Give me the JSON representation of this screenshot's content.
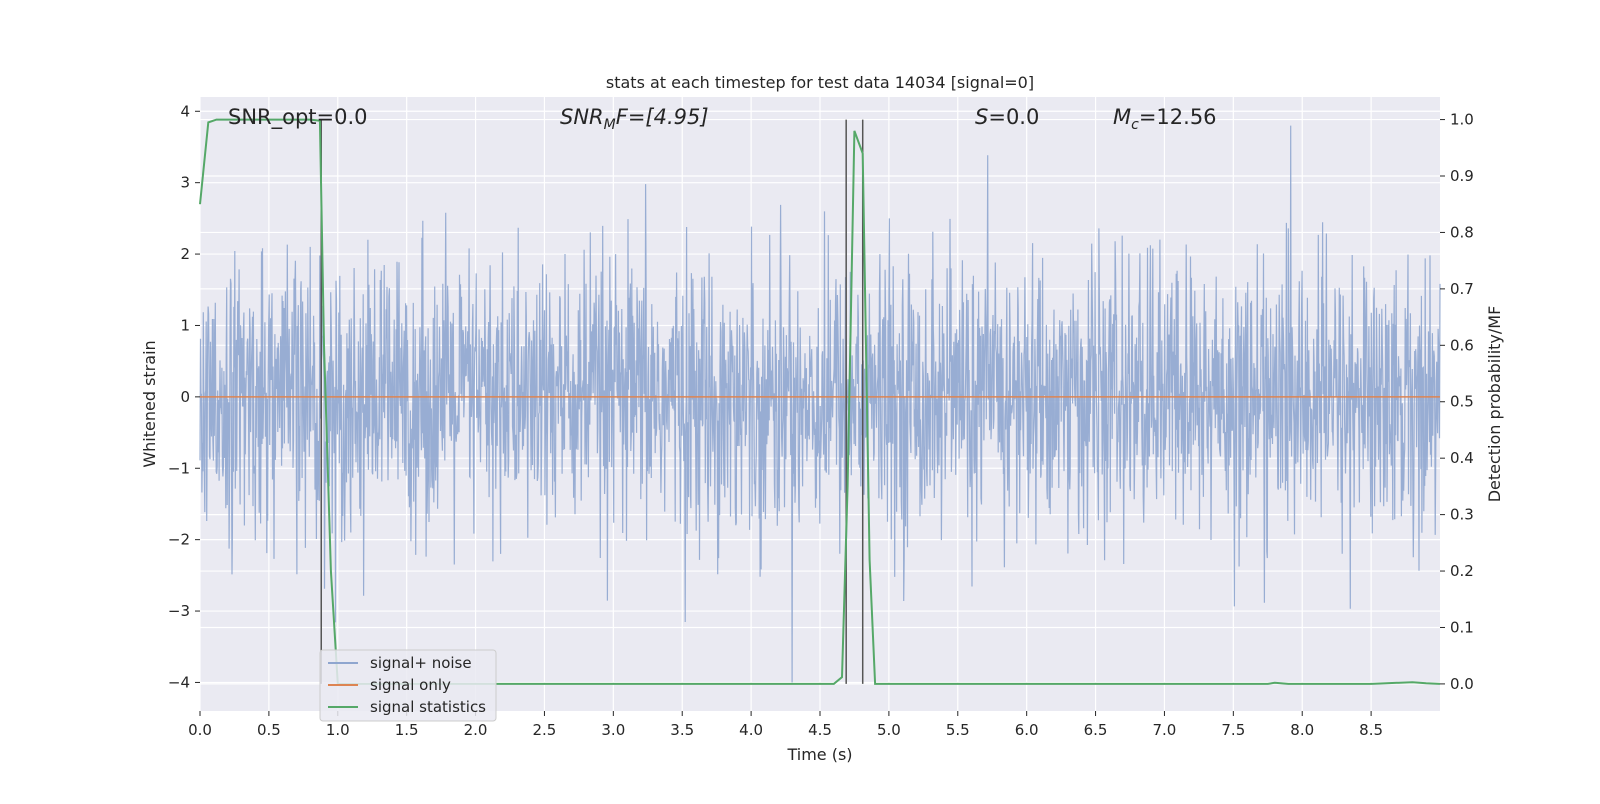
{
  "chart_data": {
    "type": "line",
    "title": "stats at each timestep for test data 14034 [signal=0]",
    "xlabel": "Time (s)",
    "ylabel": "Whitened strain",
    "ylabel_right": "Detection probability/MF",
    "xlim": [
      0.0,
      9.0
    ],
    "ylim": [
      -4.4,
      4.2
    ],
    "ylim_right": [
      -0.048,
      1.04
    ],
    "grid": true,
    "legend_position": "lower-left",
    "xticks": [
      "0.0",
      "0.5",
      "1.0",
      "1.5",
      "2.0",
      "2.5",
      "3.0",
      "3.5",
      "4.0",
      "4.5",
      "5.0",
      "5.5",
      "6.0",
      "6.5",
      "7.0",
      "7.5",
      "8.0",
      "8.5"
    ],
    "yticks_left": [
      "4",
      "3",
      "2",
      "1",
      "0",
      "−1",
      "−2",
      "−3",
      "−4"
    ],
    "yticks_right": [
      "1.0",
      "0.9",
      "0.8",
      "0.7",
      "0.6",
      "0.5",
      "0.4",
      "0.3",
      "0.2",
      "0.1",
      "0.0"
    ],
    "annotations": {
      "snr_opt": "SNR_opt=0.0",
      "snr_mf_base": "SNR",
      "snr_mf_sub": "M",
      "snr_mf_rest": "F=[4.95]",
      "s_italic": "S",
      "s_rest": "=0.0",
      "mc_base": "M",
      "mc_sub": "c",
      "mc_rest": "=12.56"
    },
    "series": [
      {
        "name": "signal+ noise",
        "color": "#8fa6cf",
        "description_values": "whitened noise fluctuating roughly between -2.5 and 2.5 across 0-9 s, occasional spikes to about 3.8 and -4"
      },
      {
        "name": "signal only",
        "color": "#dd8452",
        "y": 0
      },
      {
        "name": "signal statistics",
        "color": "#55a868",
        "axis": "right",
        "x": [
          0.0,
          0.06,
          0.12,
          0.2,
          0.4,
          0.6,
          0.8,
          0.87,
          0.9,
          0.95,
          1.0,
          1.5,
          2.0,
          3.0,
          4.0,
          4.6,
          4.66,
          4.7,
          4.75,
          4.81,
          4.86,
          4.9,
          5.0,
          6.0,
          7.0,
          7.75,
          7.8,
          7.9,
          8.0,
          8.5,
          8.8,
          8.9,
          9.0
        ],
        "y": [
          0.85,
          0.995,
          1.0,
          1.0,
          1.0,
          1.0,
          1.0,
          0.998,
          0.6,
          0.2,
          0.0,
          0.0,
          0.0,
          0.0,
          0.0,
          0.0,
          0.012,
          0.35,
          0.98,
          0.94,
          0.22,
          0.0,
          0.0,
          0.0,
          0.0,
          0.0,
          0.002,
          0.0,
          0.0,
          0.0,
          0.003,
          0.001,
          0.0
        ]
      }
    ],
    "vlines": [
      0.88,
      4.69,
      4.81
    ]
  }
}
